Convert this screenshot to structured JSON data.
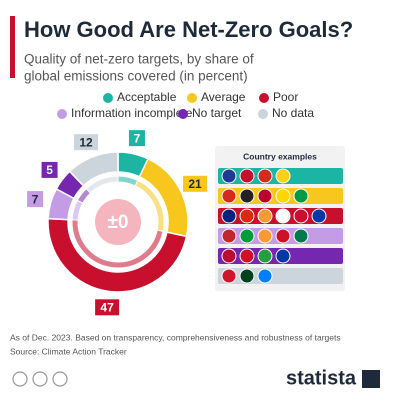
{
  "chart_data": {
    "type": "pie",
    "title": "How Good Are Net-Zero Goals?",
    "subtitle": [
      "Quality of net-zero targets, by share of",
      "global emissions covered (in percent)"
    ],
    "categories": [
      "Acceptable",
      "Average",
      "Poor",
      "Information incomplete",
      "No target",
      "No data"
    ],
    "values": [
      7,
      21,
      47,
      7,
      5,
      12
    ],
    "colors": [
      "#1cb5a3",
      "#f7c71d",
      "#c8102e",
      "#c49ce6",
      "#7527b0",
      "#ccd4dc"
    ],
    "center_label": "±0",
    "panel_title": "Country examples"
  },
  "footer": {
    "note": "As of Dec. 2023. Based on transparency, comprehensiveness and robustness of targets",
    "source": "Source: Climate Action Tracker",
    "brand": "statista"
  }
}
